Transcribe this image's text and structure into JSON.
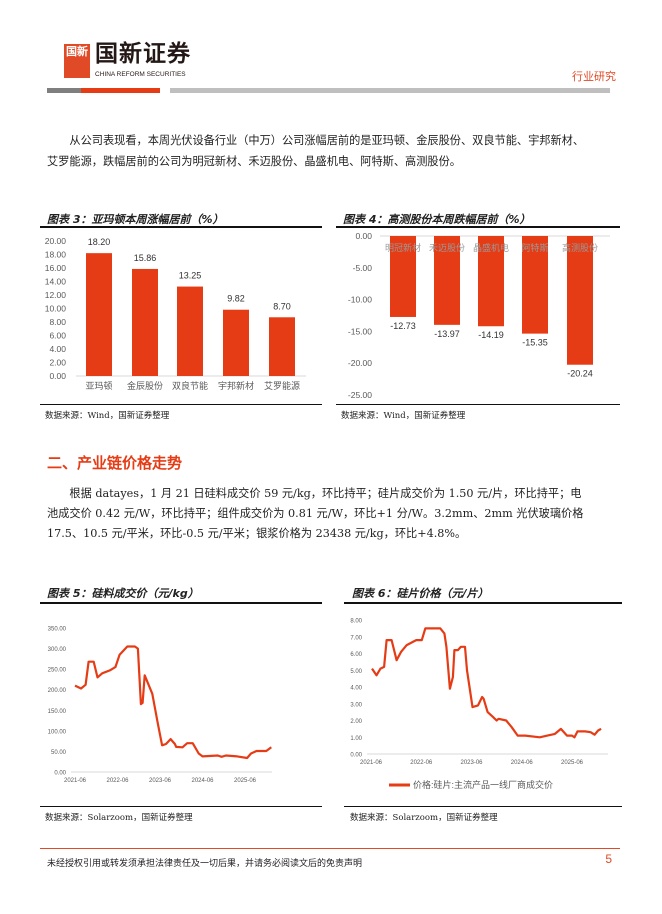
{
  "header": {
    "logo_mark": "国新",
    "logo_cn": "国新证券",
    "logo_en": "CHINA REFORM SECURITIES",
    "tag": "行业研究"
  },
  "intro": "从公司表现看，本周光伏设备行业（中万）公司涨幅居前的是亚玛顿、金辰股份、双良节能、宇邦新材、艾罗能源，跌幅居前的公司为明冠新材、禾迈股份、晶盛机电、阿特斯、高测股份。",
  "section2": {
    "title": "二、产业链价格走势",
    "body": "根据 datayes，1 月 21 日硅料成交价 59 元/kg，环比持平；硅片成交价为 1.50 元/片，环比持平；电池成交价 0.42 元/W，环比持平；组件成交价为 0.81 元/W，环比+1 分/W。3.2mm、2mm 光伏玻璃价格 17.5、10.5 元/平米，环比-0.5 元/平米；银浆价格为 23438 元/kg，环比+4.8%。"
  },
  "fig3": {
    "caption": "图表 3：亚玛顿本周涨幅居前（%）",
    "source": "数据来源：Wind，国新证券整理"
  },
  "fig4": {
    "caption": "图表 4：高测股份本周跌幅居前（%）",
    "source": "数据来源：Wind，国新证券整理"
  },
  "fig5": {
    "caption": "图表 5：硅料成交价（元/kg）",
    "source": "数据来源：Solarzoom，国新证券整理"
  },
  "fig6": {
    "caption": "图表 6：硅片价格（元/片）",
    "source": "数据来源：Solarzoom，国新证券整理"
  },
  "footer": {
    "disclaimer": "未经授权引用或转发须承担法律责任及一切后果，并请务必阅读文后的免责声明",
    "page": "5"
  },
  "colors": {
    "accent": "#e63c16",
    "axis": "#d9d9d9",
    "tick": "#595959"
  },
  "chart_data": [
    {
      "type": "bar",
      "title": "亚玛顿本周涨幅居前（%）",
      "categories": [
        "亚玛顿",
        "金辰股份",
        "双良节能",
        "宇邦新材",
        "艾罗能源"
      ],
      "values": [
        18.2,
        15.86,
        13.25,
        9.82,
        8.7
      ],
      "labels": [
        "18.20",
        "15.86",
        "13.25",
        "9.82",
        "8.70"
      ],
      "ylim": [
        0,
        20
      ],
      "yticks": [
        "0.00",
        "2.00",
        "4.00",
        "6.00",
        "8.00",
        "10.00",
        "12.00",
        "14.00",
        "16.00",
        "18.00",
        "20.00"
      ]
    },
    {
      "type": "bar",
      "title": "高测股份本周跌幅居前（%）",
      "categories": [
        "明冠新材",
        "禾迈股份",
        "晶盛机电",
        "阿特斯",
        "高测股份"
      ],
      "values": [
        -12.73,
        -13.97,
        -14.19,
        -15.35,
        -20.24
      ],
      "labels": [
        "-12.73",
        "-13.97",
        "-14.19",
        "-15.35",
        "-20.24"
      ],
      "ylim": [
        -25,
        0
      ],
      "yticks": [
        "0.00",
        "-5.00",
        "-10.00",
        "-15.00",
        "-20.00",
        "-25.00"
      ]
    },
    {
      "type": "line",
      "title": "硅料成交价（元/kg）",
      "ylim": [
        0,
        350
      ],
      "yticks": [
        "0.00",
        "50.00",
        "100.00",
        "150.00",
        "200.00",
        "250.00",
        "300.00",
        "350.00"
      ],
      "xticks": [
        "2021-06",
        "2022-06",
        "2023-06",
        "2024-06",
        "2025-06"
      ],
      "points": [
        [
          2021.5,
          210
        ],
        [
          2021.64,
          203
        ],
        [
          2021.75,
          212
        ],
        [
          2021.82,
          268
        ],
        [
          2021.94,
          268
        ],
        [
          2022.03,
          230
        ],
        [
          2022.14,
          240
        ],
        [
          2022.32,
          247
        ],
        [
          2022.45,
          255
        ],
        [
          2022.55,
          285
        ],
        [
          2022.73,
          305
        ],
        [
          2022.91,
          305
        ],
        [
          2022.98,
          300
        ],
        [
          2023.05,
          165
        ],
        [
          2023.09,
          168
        ],
        [
          2023.14,
          235
        ],
        [
          2023.32,
          190
        ],
        [
          2023.45,
          117
        ],
        [
          2023.55,
          65
        ],
        [
          2023.64,
          68
        ],
        [
          2023.75,
          80
        ],
        [
          2023.85,
          68
        ],
        [
          2023.88,
          61
        ],
        [
          2024.03,
          60
        ],
        [
          2024.14,
          70
        ],
        [
          2024.27,
          70
        ],
        [
          2024.41,
          45
        ],
        [
          2024.5,
          38
        ],
        [
          2024.86,
          40
        ],
        [
          2024.95,
          37
        ],
        [
          2025.05,
          40
        ],
        [
          2025.32,
          38
        ],
        [
          2025.55,
          34
        ],
        [
          2025.64,
          45
        ],
        [
          2025.77,
          51
        ],
        [
          2026.0,
          51
        ],
        [
          2026.12,
          60
        ]
      ]
    },
    {
      "type": "line",
      "title": "硅片价格（元/片）",
      "legend": "价格:硅片:主流产品一线厂商成交价",
      "ylim": [
        0,
        8
      ],
      "yticks": [
        "0.00",
        "1.00",
        "2.00",
        "3.00",
        "4.00",
        "5.00",
        "6.00",
        "7.00",
        "8.00"
      ],
      "xticks": [
        "2021-06",
        "2022-06",
        "2023-06",
        "2024-06",
        "2025-06"
      ],
      "points": [
        [
          2021.52,
          5.1
        ],
        [
          2021.61,
          4.7
        ],
        [
          2021.69,
          5.1
        ],
        [
          2021.76,
          5.2
        ],
        [
          2021.81,
          6.8
        ],
        [
          2021.91,
          6.8
        ],
        [
          2022.01,
          5.6
        ],
        [
          2022.1,
          6.1
        ],
        [
          2022.21,
          6.5
        ],
        [
          2022.4,
          6.8
        ],
        [
          2022.51,
          6.8
        ],
        [
          2022.58,
          7.5
        ],
        [
          2022.88,
          7.5
        ],
        [
          2022.96,
          7.2
        ],
        [
          2023.0,
          6.4
        ],
        [
          2023.07,
          3.9
        ],
        [
          2023.13,
          4.6
        ],
        [
          2023.16,
          6.2
        ],
        [
          2023.23,
          6.2
        ],
        [
          2023.29,
          6.4
        ],
        [
          2023.37,
          6.4
        ],
        [
          2023.41,
          5.0
        ],
        [
          2023.52,
          2.8
        ],
        [
          2023.63,
          2.9
        ],
        [
          2023.71,
          3.4
        ],
        [
          2023.74,
          3.3
        ],
        [
          2023.82,
          2.5
        ],
        [
          2023.93,
          2.2
        ],
        [
          2024.0,
          2.0
        ],
        [
          2024.04,
          2.1
        ],
        [
          2024.19,
          2.0
        ],
        [
          2024.3,
          1.6
        ],
        [
          2024.42,
          1.1
        ],
        [
          2024.57,
          1.1
        ],
        [
          2024.86,
          1.0
        ],
        [
          2025.01,
          1.1
        ],
        [
          2025.16,
          1.2
        ],
        [
          2025.28,
          1.5
        ],
        [
          2025.4,
          1.1
        ],
        [
          2025.5,
          1.1
        ],
        [
          2025.55,
          1.0
        ],
        [
          2025.61,
          1.35
        ],
        [
          2025.76,
          1.35
        ],
        [
          2025.87,
          1.3
        ],
        [
          2025.95,
          1.15
        ],
        [
          2026.02,
          1.4
        ],
        [
          2026.08,
          1.5
        ]
      ]
    }
  ]
}
